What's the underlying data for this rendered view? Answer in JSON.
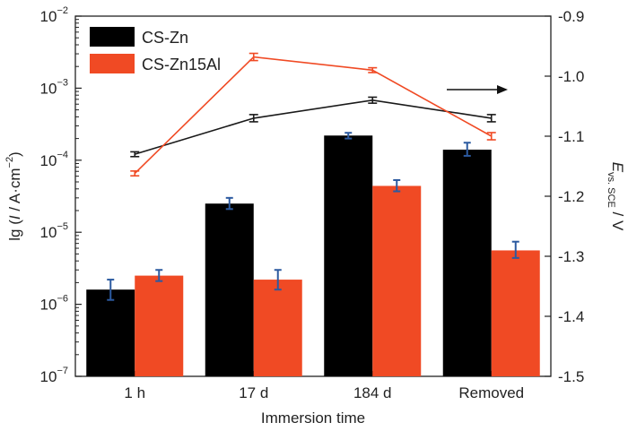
{
  "chart_data": {
    "type": "bar",
    "title": "",
    "categories": [
      "1 h",
      "17 d",
      "184 d",
      "Removed"
    ],
    "xlabel": "Immersion time",
    "left_axis": {
      "label_prefix": "lg (",
      "label_var": "I",
      "label_mid": " / A·cm",
      "label_sup": "−2",
      "label_suffix": ")",
      "scale": "log",
      "ylim": [
        1e-07,
        0.01
      ],
      "ticks": [
        {
          "value": 1e-07,
          "base": "10",
          "exp": "-7"
        },
        {
          "value": 1e-06,
          "base": "10",
          "exp": "-6"
        },
        {
          "value": 1e-05,
          "base": "10",
          "exp": "-5"
        },
        {
          "value": 0.0001,
          "base": "10",
          "exp": "-4"
        },
        {
          "value": 0.001,
          "base": "10",
          "exp": "-3"
        },
        {
          "value": 0.01,
          "base": "10",
          "exp": "-2"
        }
      ]
    },
    "right_axis": {
      "label_var": "E",
      "label_sub": "vs. SCE",
      "label_suffix": " / V",
      "ylim": [
        -1.5,
        -0.9
      ],
      "ticks": [
        "-0.9",
        "-1.0",
        "-1.1",
        "-1.2",
        "-1.3",
        "-1.4",
        "-1.5"
      ]
    },
    "bar_series": [
      {
        "name": "CS-Zn",
        "color": "#000000",
        "values": [
          1.6e-06,
          2.5e-05,
          0.00022,
          0.00014
        ],
        "err_low": [
          1.15e-06,
          2.1e-05,
          0.0002,
          0.000115
        ],
        "err_high": [
          2.2e-06,
          3e-05,
          0.00024,
          0.000175
        ]
      },
      {
        "name": "CS-Zn15Al",
        "color": "#f04a24",
        "values": [
          2.5e-06,
          2.2e-06,
          4.4e-05,
          5.6e-06
        ],
        "err_low": [
          2.1e-06,
          1.6e-06,
          3.7e-05,
          4.4e-06
        ],
        "err_high": [
          3e-06,
          3e-06,
          5.3e-05,
          7.4e-06
        ]
      }
    ],
    "line_series": [
      {
        "color": "#1a1a1a",
        "axis": "right",
        "values": [
          -1.13,
          -1.07,
          -1.04,
          -1.07
        ],
        "err": [
          0.004,
          0.006,
          0.005,
          0.006
        ]
      },
      {
        "color": "#f04a24",
        "axis": "right",
        "values": [
          -1.162,
          -0.968,
          -0.99,
          -1.1
        ],
        "err": [
          0.004,
          0.006,
          0.004,
          0.006
        ]
      }
    ],
    "error_bar_color": "#2c5aa0",
    "legend_position": "top-left",
    "grid": false,
    "annotation": "arrow pointing right (line series use right axis)"
  }
}
